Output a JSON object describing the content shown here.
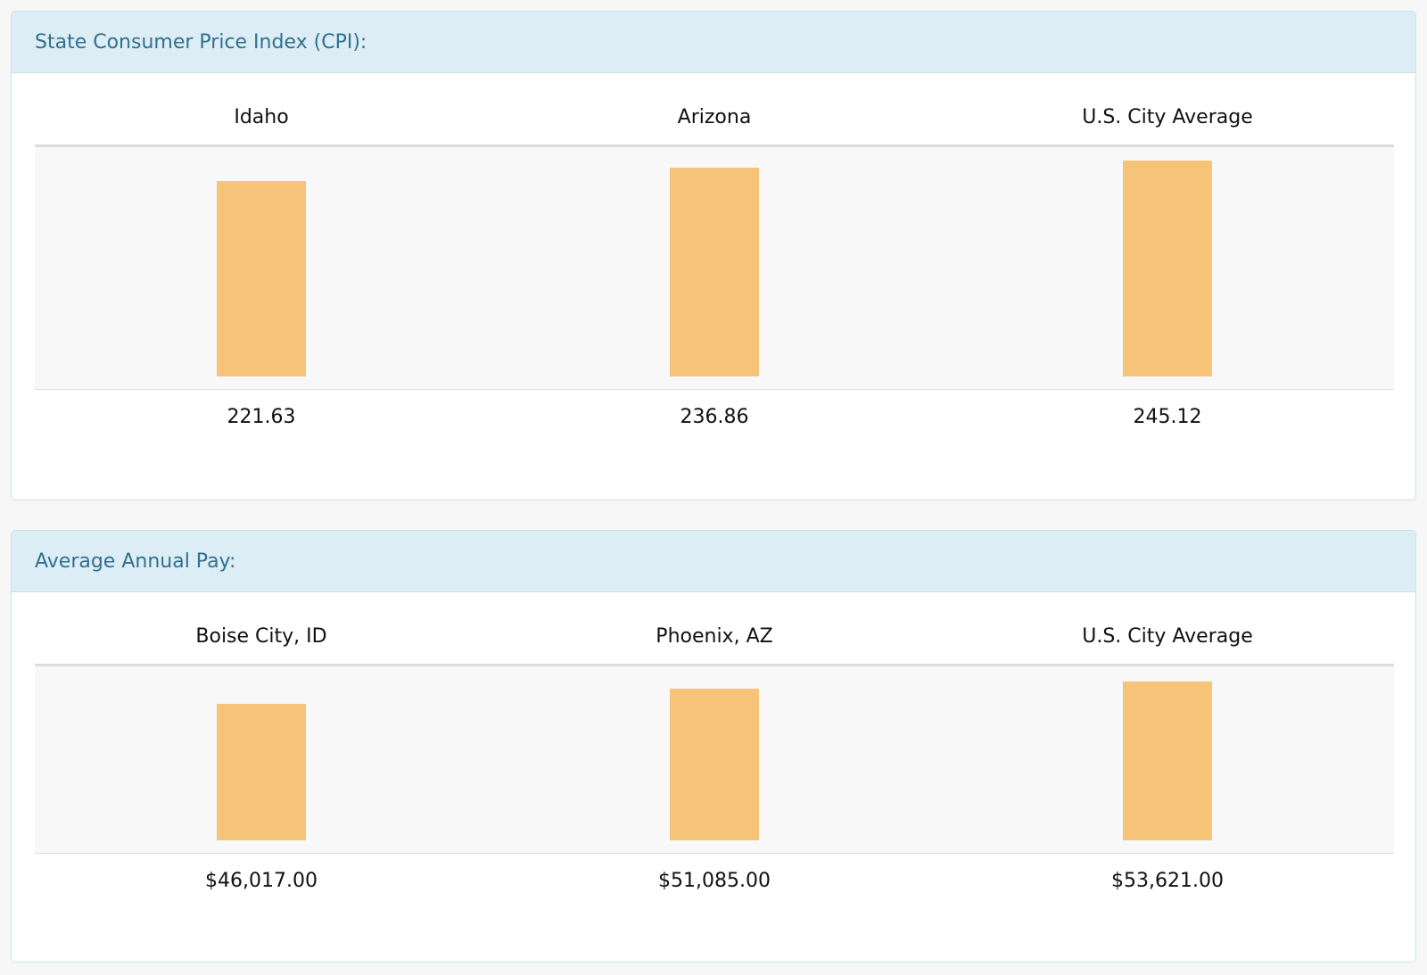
{
  "colors": {
    "bar": "#f6c478",
    "heading_bg": "#dcedf5",
    "heading_text": "#31708f"
  },
  "panels": [
    {
      "title": "State Consumer Price Index (CPI):",
      "chart_data": {
        "type": "bar",
        "title": "State Consumer Price Index (CPI):",
        "categories": [
          "Idaho",
          "Arizona",
          "U.S. City Average"
        ],
        "values": [
          221.63,
          236.86,
          245.12
        ],
        "value_labels": [
          "221.63",
          "236.86",
          "245.12"
        ],
        "ylim": [
          0,
          245.12
        ]
      }
    },
    {
      "title": "Average Annual Pay:",
      "chart_data": {
        "type": "bar",
        "title": "Average Annual Pay:",
        "categories": [
          "Boise City, ID",
          "Phoenix, AZ",
          "U.S. City Average"
        ],
        "values": [
          46017.0,
          51085.0,
          53621.0
        ],
        "value_labels": [
          "$46,017.00",
          "$51,085.00",
          "$53,621.00"
        ],
        "ylim": [
          0,
          53621.0
        ]
      }
    }
  ]
}
